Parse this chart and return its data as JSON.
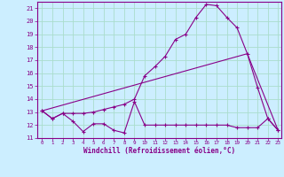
{
  "xlabel": "Windchill (Refroidissement éolien,°C)",
  "bg_color": "#cceeff",
  "grid_color": "#aaddcc",
  "line_color": "#880088",
  "xlim": [
    -0.5,
    23.3
  ],
  "ylim": [
    11,
    21.5
  ],
  "xticks": [
    0,
    1,
    2,
    3,
    4,
    5,
    6,
    7,
    8,
    9,
    10,
    11,
    12,
    13,
    14,
    15,
    16,
    17,
    18,
    19,
    20,
    21,
    22,
    23
  ],
  "yticks": [
    11,
    12,
    13,
    14,
    15,
    16,
    17,
    18,
    19,
    20,
    21
  ],
  "series1_x": [
    0,
    1,
    2,
    3,
    4,
    5,
    6,
    7,
    8,
    9,
    10,
    11,
    12,
    13,
    14,
    15,
    16,
    17,
    18,
    19,
    20,
    21,
    22,
    23
  ],
  "series1_y": [
    13.1,
    12.5,
    12.9,
    12.3,
    11.5,
    12.1,
    12.1,
    11.6,
    11.4,
    13.8,
    12.0,
    12.0,
    12.0,
    12.0,
    12.0,
    12.0,
    12.0,
    12.0,
    12.0,
    11.8,
    11.8,
    11.8,
    12.5,
    11.6
  ],
  "series2_x": [
    0,
    1,
    2,
    3,
    4,
    5,
    6,
    7,
    8,
    9,
    10,
    11,
    12,
    13,
    14,
    15,
    16,
    17,
    18,
    19,
    20,
    21,
    22,
    23
  ],
  "series2_y": [
    13.1,
    12.5,
    12.9,
    12.9,
    12.9,
    13.0,
    13.2,
    13.4,
    13.6,
    14.0,
    15.8,
    16.5,
    17.3,
    18.6,
    19.0,
    20.3,
    21.3,
    21.2,
    20.3,
    19.5,
    17.5,
    14.9,
    12.5,
    11.6
  ],
  "series3_x": [
    0,
    20,
    23
  ],
  "series3_y": [
    13.1,
    17.5,
    11.6
  ]
}
